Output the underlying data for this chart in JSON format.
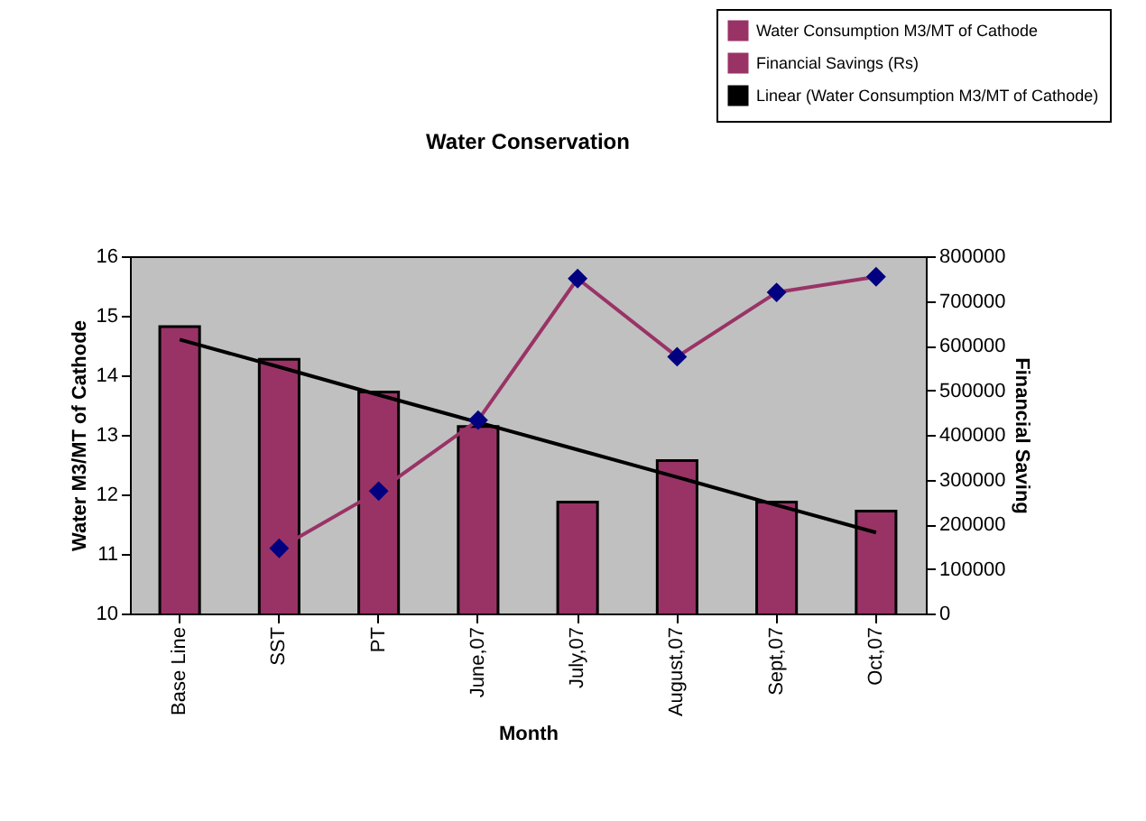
{
  "chart_data": {
    "type": "bar",
    "title": "Water Conservation",
    "xlabel": "Month",
    "ylabel": "Water M3/MT of Cathode",
    "y2label": "Financial Saving",
    "categories": [
      "Base Line",
      "SST",
      "PT",
      "June,07",
      "July,07",
      "August,07",
      "Sept,07",
      "Oct,07"
    ],
    "series": [
      {
        "name": "Water Consumption M3/MT of Cathode",
        "color": "#993366",
        "values": [
          14.82,
          14.27,
          13.72,
          13.14,
          11.87,
          12.57,
          11.87,
          11.72
        ]
      },
      {
        "name": "Financial Savings (Rs)",
        "type": "line",
        "axis": "y2",
        "color": "#993366",
        "marker": "diamond",
        "values": [
          null,
          146000,
          274000,
          433000,
          750000,
          575000,
          719000,
          754000
        ]
      },
      {
        "name": "Linear (Water Consumption M3/MT of Cathode)",
        "type": "line",
        "color": "#000000",
        "marker": "none",
        "values": [
          14.6,
          14.14,
          13.67,
          13.21,
          12.75,
          12.29,
          11.82,
          11.36
        ]
      }
    ],
    "ylim": [
      10,
      16
    ],
    "yticks": [
      10,
      11,
      12,
      13,
      14,
      15,
      16
    ],
    "y2lim": [
      0,
      800000
    ],
    "y2ticks": [
      0,
      100000,
      200000,
      300000,
      400000,
      500000,
      600000,
      700000,
      800000
    ],
    "grid": false,
    "legend": "top right"
  }
}
